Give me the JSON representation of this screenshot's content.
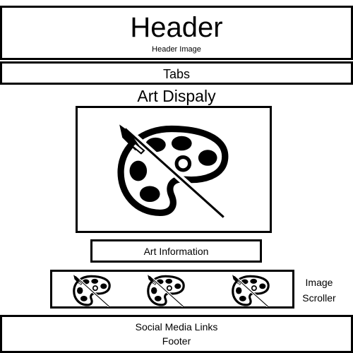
{
  "header": {
    "title": "Header",
    "subtitle": "Header Image"
  },
  "tabs": {
    "label": "Tabs"
  },
  "art_display": {
    "title": "Art Dispaly",
    "image_icon": "palette-icon"
  },
  "art_information": {
    "label": "Art Information"
  },
  "image_scroller": {
    "label_line1": "Image",
    "label_line2": "Scroller",
    "thumbnail_icon": "palette-icon",
    "thumbnail_count": 3
  },
  "footer": {
    "line1": "Social Media Links",
    "line2": "Footer"
  }
}
